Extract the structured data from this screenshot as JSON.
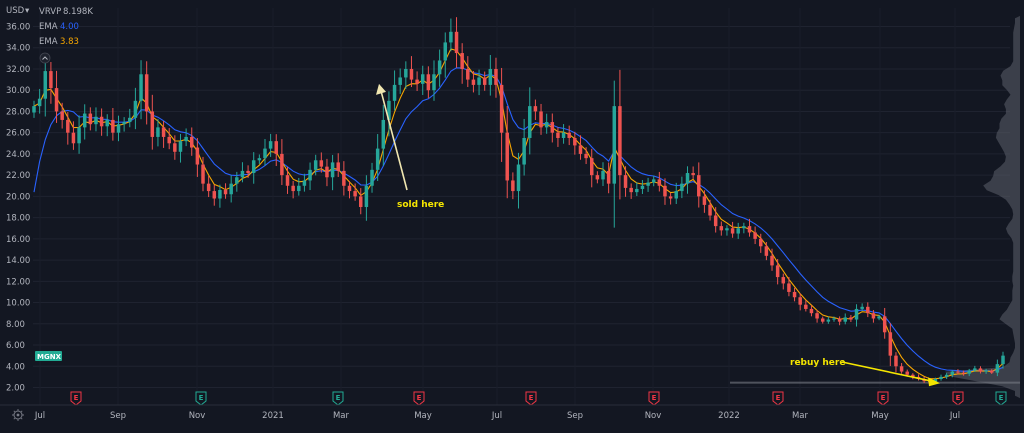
{
  "chart_data": {
    "type": "candlestick",
    "currency_label": "USD",
    "y_ticks": [
      2.0,
      4.0,
      6.0,
      8.0,
      10.0,
      12.0,
      14.0,
      16.0,
      18.0,
      20.0,
      22.0,
      24.0,
      26.0,
      28.0,
      30.0,
      32.0,
      34.0,
      36.0
    ],
    "ylim": [
      0.9,
      37.6
    ],
    "x_labels": [
      "Jul",
      "Sep",
      "Nov",
      "2021",
      "Mar",
      "May",
      "Jul",
      "Sep",
      "Nov",
      "2022",
      "Mar",
      "May",
      "Jul"
    ],
    "legend": [
      {
        "name": "VRVP",
        "value": "8.198K",
        "color": "#b2b5be"
      },
      {
        "name": "EMA",
        "value": "4.00",
        "color": "#2962ff"
      },
      {
        "name": "EMA",
        "value": "3.83",
        "color": "#f7a600"
      }
    ],
    "ticker_badge": "MGNX",
    "annotations": [
      {
        "text": "sold here",
        "target_price": 30.5,
        "color": "#f5e600"
      },
      {
        "text": "rebuy here",
        "target_price": 2.5,
        "color": "#f5e600"
      }
    ],
    "earnings_markers": [
      {
        "label": "E",
        "kind": "negative"
      },
      {
        "label": "E",
        "kind": "positive"
      },
      {
        "label": "E",
        "kind": "positive"
      },
      {
        "label": "E",
        "kind": "negative"
      },
      {
        "label": "E",
        "kind": "negative"
      },
      {
        "label": "E",
        "kind": "negative"
      },
      {
        "label": "E",
        "kind": "negative"
      },
      {
        "label": "E",
        "kind": "negative"
      },
      {
        "label": "E",
        "kind": "negative"
      },
      {
        "label": "E",
        "kind": "positive"
      }
    ],
    "price_series": {
      "start": "2020-06-29",
      "trading_days_per_point": 3,
      "closes": [
        28.5,
        29.2,
        31.8,
        30.2,
        28.0,
        27.2,
        26.0,
        25.0,
        26.5,
        27.8,
        26.8,
        27.5,
        26.6,
        27.2,
        26.0,
        26.8,
        27.0,
        27.4,
        29.0,
        31.5,
        28.0,
        25.6,
        26.5,
        25.6,
        25.0,
        24.2,
        25.2,
        25.6,
        24.6,
        23.0,
        21.2,
        20.5,
        19.8,
        20.6,
        20.2,
        21.2,
        21.8,
        22.4,
        22.2,
        23.4,
        23.6,
        24.5,
        25.2,
        24.0,
        22.0,
        21.0,
        20.5,
        21.0,
        21.5,
        22.5,
        23.4,
        22.8,
        21.8,
        23.2,
        22.4,
        21.0,
        20.5,
        20.0,
        19.0,
        21.0,
        22.5,
        24.5,
        27.2,
        29.0,
        30.5,
        31.2,
        32.0,
        31.0,
        30.6,
        31.5,
        30.0,
        31.5,
        32.8,
        34.5,
        35.5,
        33.5,
        32.0,
        31.0,
        30.5,
        31.2,
        30.5,
        32.0,
        30.5,
        26.0,
        21.5,
        20.5,
        23.0,
        25.5,
        28.5,
        28.0,
        26.5,
        27.0,
        26.0,
        25.5,
        26.0,
        25.5,
        24.8,
        24.0,
        23.6,
        22.0,
        21.6,
        22.4,
        21.2,
        28.5,
        22.0,
        20.8,
        20.4,
        20.7,
        21.0,
        21.3,
        21.6,
        21.0,
        20.0,
        19.8,
        20.5,
        21.2,
        22.2,
        22.0,
        20.0,
        19.2,
        18.2,
        17.2,
        16.8,
        17.0,
        16.5,
        17.0,
        17.2,
        16.6,
        16.0,
        15.3,
        14.4,
        13.5,
        12.4,
        11.8,
        11.0,
        10.5,
        9.8,
        9.4,
        9.0,
        8.5,
        8.2,
        8.4,
        8.5,
        8.2,
        8.6,
        8.4,
        9.4,
        9.6,
        9.0,
        8.5,
        8.7,
        7.2,
        5.0,
        4.0,
        3.5,
        3.2,
        3.0,
        2.8,
        2.6,
        2.5,
        2.8,
        3.0,
        3.2,
        3.5,
        3.4,
        3.3,
        3.6,
        3.8,
        3.5,
        3.6,
        3.4,
        4.2,
        5.0
      ]
    },
    "ema_fast": {
      "color": "#f7a600"
    },
    "ema_slow": {
      "color": "#2962ff"
    }
  }
}
